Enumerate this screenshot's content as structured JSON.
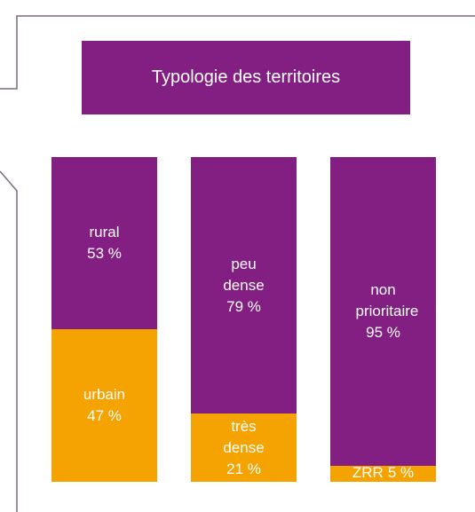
{
  "chart_data": {
    "type": "stacked-bar",
    "title": "Typologie des territoires",
    "title_color": "#831f82",
    "bars": [
      {
        "segments": [
          {
            "name": "rural",
            "value": 53,
            "value_label": "53 %",
            "color": "#831f82"
          },
          {
            "name": "urbain",
            "value": 47,
            "value_label": "47 %",
            "color": "#f5a300"
          }
        ]
      },
      {
        "segments": [
          {
            "name": "peu dense",
            "value": 79,
            "value_label": "79 %",
            "color": "#831f82"
          },
          {
            "name": "très dense",
            "value": 21,
            "value_label": "21 %",
            "color": "#f5a300"
          }
        ]
      },
      {
        "segments": [
          {
            "name": "non prioritaire",
            "value": 95,
            "value_label": "95 %",
            "color": "#831f82"
          },
          {
            "name": "ZRR",
            "value": 5,
            "value_label": "5 %",
            "color": "#f5a300"
          }
        ]
      }
    ]
  }
}
